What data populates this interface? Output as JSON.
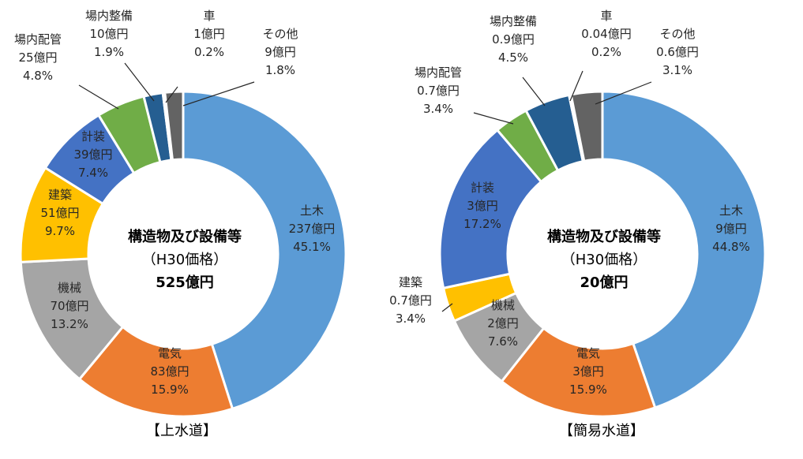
{
  "chart_data": [
    {
      "type": "pie",
      "caption": "【上水道】",
      "center": [
        "構造物及び設備等",
        "（H30価格）",
        "525億円"
      ],
      "slices": [
        {
          "name": "土木",
          "amount": "237億円",
          "percent": "45.1%",
          "value": 45.1,
          "color": "#5b9bd5"
        },
        {
          "name": "電気",
          "amount": "83億円",
          "percent": "15.9%",
          "value": 15.9,
          "color": "#ed7d31"
        },
        {
          "name": "機械",
          "amount": "70億円",
          "percent": "13.2%",
          "value": 13.2,
          "color": "#a5a5a5"
        },
        {
          "name": "建築",
          "amount": "51億円",
          "percent": "9.7%",
          "value": 9.7,
          "color": "#ffc000"
        },
        {
          "name": "計装",
          "amount": "39億円",
          "percent": "7.4%",
          "value": 7.4,
          "color": "#4472c4"
        },
        {
          "name": "場内配管",
          "amount": "25億円",
          "percent": "4.8%",
          "value": 4.8,
          "color": "#70ad47"
        },
        {
          "name": "場内整備",
          "amount": "10億円",
          "percent": "1.9%",
          "value": 1.9,
          "color": "#255e91"
        },
        {
          "name": "車",
          "amount": "1億円",
          "percent": "0.2%",
          "value": 0.2,
          "color": "#264478"
        },
        {
          "name": "その他",
          "amount": "9億円",
          "percent": "1.8%",
          "value": 1.8,
          "color": "#636363"
        }
      ]
    },
    {
      "type": "pie",
      "caption": "【簡易水道】",
      "center": [
        "構造物及び設備等",
        "（H30価格）",
        "20億円"
      ],
      "slices": [
        {
          "name": "土木",
          "amount": "9億円",
          "percent": "44.8%",
          "value": 44.8,
          "color": "#5b9bd5"
        },
        {
          "name": "電気",
          "amount": "3億円",
          "percent": "15.9%",
          "value": 15.9,
          "color": "#ed7d31"
        },
        {
          "name": "機械",
          "amount": "2億円",
          "percent": "7.6%",
          "value": 7.6,
          "color": "#a5a5a5"
        },
        {
          "name": "建築",
          "amount": "0.7億円",
          "percent": "3.4%",
          "value": 3.4,
          "color": "#ffc000"
        },
        {
          "name": "計装",
          "amount": "3億円",
          "percent": "17.2%",
          "value": 17.2,
          "color": "#4472c4"
        },
        {
          "name": "場内配管",
          "amount": "0.7億円",
          "percent": "3.4%",
          "value": 3.4,
          "color": "#70ad47"
        },
        {
          "name": "場内整備",
          "amount": "0.9億円",
          "percent": "4.5%",
          "value": 4.5,
          "color": "#255e91"
        },
        {
          "name": "車",
          "amount": "0.04億円",
          "percent": "0.2%",
          "value": 0.2,
          "color": "#264478"
        },
        {
          "name": "その他",
          "amount": "0.6億円",
          "percent": "3.1%",
          "value": 3.1,
          "color": "#636363"
        }
      ]
    }
  ]
}
